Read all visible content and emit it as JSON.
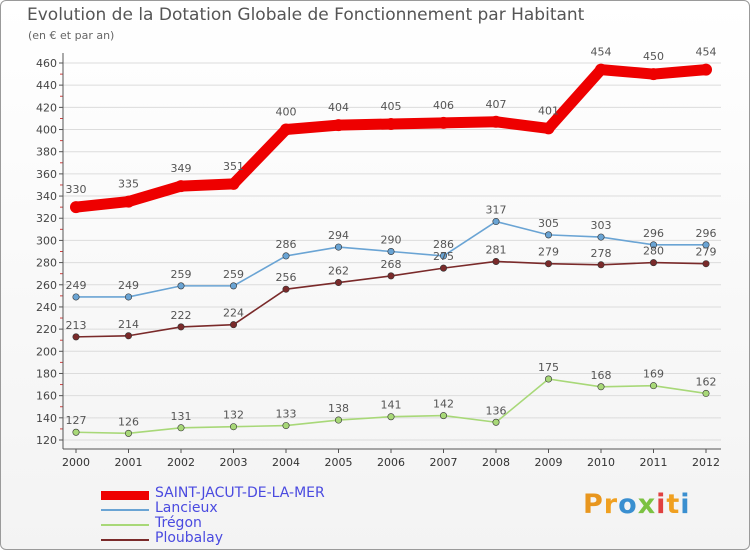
{
  "title": "Evolution de la Dotation Globale de Fonctionnement par Habitant",
  "subtitle": "(en € et par an)",
  "logo": {
    "text": "Proxiti",
    "letter_colors": [
      "#e8961e",
      "#f0a020",
      "#3a8fd0",
      "#7cc242",
      "#e04040",
      "#f0a020",
      "#3a8fd0"
    ]
  },
  "chart_data": {
    "type": "line",
    "title": "Evolution de la Dotation Globale de Fonctionnement par Habitant",
    "subtitle": "(en € et par an)",
    "xlabel": "",
    "ylabel": "",
    "ylim": [
      120,
      460
    ],
    "yticks": [
      120,
      140,
      160,
      180,
      200,
      220,
      240,
      260,
      280,
      300,
      320,
      340,
      360,
      380,
      400,
      420,
      440,
      460
    ],
    "grid": "horizontal",
    "legend_position": "bottom-left",
    "categories": [
      "2000",
      "2001",
      "2002",
      "2003",
      "2004",
      "2005",
      "2006",
      "2007",
      "2008",
      "2009",
      "2010",
      "2011",
      "2012"
    ],
    "series": [
      {
        "name": "SAINT-JACUT-DE-LA-MER",
        "color": "#ee0000",
        "values": [
          330,
          335,
          349,
          351,
          400,
          404,
          405,
          406,
          407,
          401,
          454,
          450,
          454
        ]
      },
      {
        "name": "Lancieux",
        "color": "#6aa4d4",
        "values": [
          249,
          249,
          259,
          259,
          286,
          294,
          290,
          286,
          317,
          305,
          303,
          296,
          296
        ]
      },
      {
        "name": "Trégon",
        "color": "#a8d878",
        "values": [
          127,
          126,
          131,
          132,
          133,
          138,
          141,
          142,
          136,
          175,
          168,
          169,
          162
        ]
      },
      {
        "name": "Ploubalay",
        "color": "#7a2a2a",
        "values": [
          213,
          214,
          222,
          224,
          256,
          262,
          268,
          275,
          281,
          279,
          278,
          280,
          279
        ]
      }
    ]
  }
}
